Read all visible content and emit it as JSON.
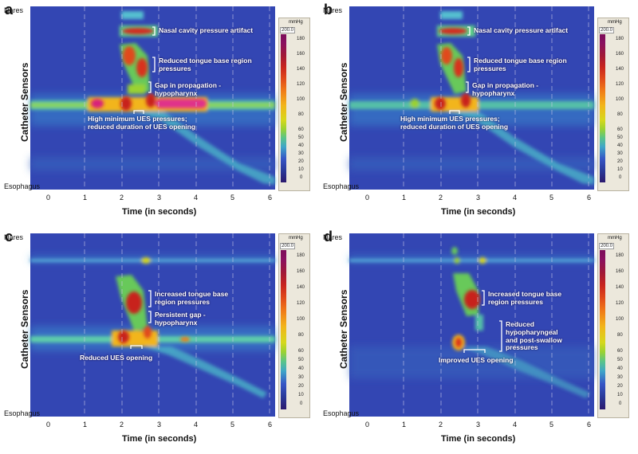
{
  "axis": {
    "ylabel": "Catheter Sensors",
    "xlabel": "Time (in seconds)",
    "nares": "Nares",
    "esophagus": "Esophagus",
    "xticks": [
      "0",
      "1",
      "2",
      "3",
      "4",
      "5",
      "6"
    ]
  },
  "colorbar": {
    "unit": "mmHg",
    "max": "200.0",
    "ticks": [
      "180",
      "160",
      "140",
      "120",
      "100",
      "80",
      "60",
      "50",
      "40",
      "30",
      "20",
      "10",
      "0"
    ]
  },
  "panels": [
    {
      "letter": "a",
      "annotations": [
        "Nasal cavity pressure artifact",
        "Reduced tongue base region pressures",
        "Gap in propagation - hypopharynx",
        "High minimum UES pressures; reduced duration of UES opening"
      ]
    },
    {
      "letter": "b",
      "annotations": [
        "Nasal cavity pressure artifact",
        "Reduced tongue base region pressures",
        "Gap in propagation - hypopharynx",
        "High minimum UES pressures; reduced duration of UES opening"
      ]
    },
    {
      "letter": "c",
      "annotations": [
        "Increased tongue base region pressures",
        "Persistent gap - hypopharynx",
        "Reduced UES opening"
      ]
    },
    {
      "letter": "d",
      "annotations": [
        "Increased tongue base region pressures",
        "Reduced hypopharyngeal and post-swallow pressures",
        "Improved UES opening"
      ]
    }
  ]
}
